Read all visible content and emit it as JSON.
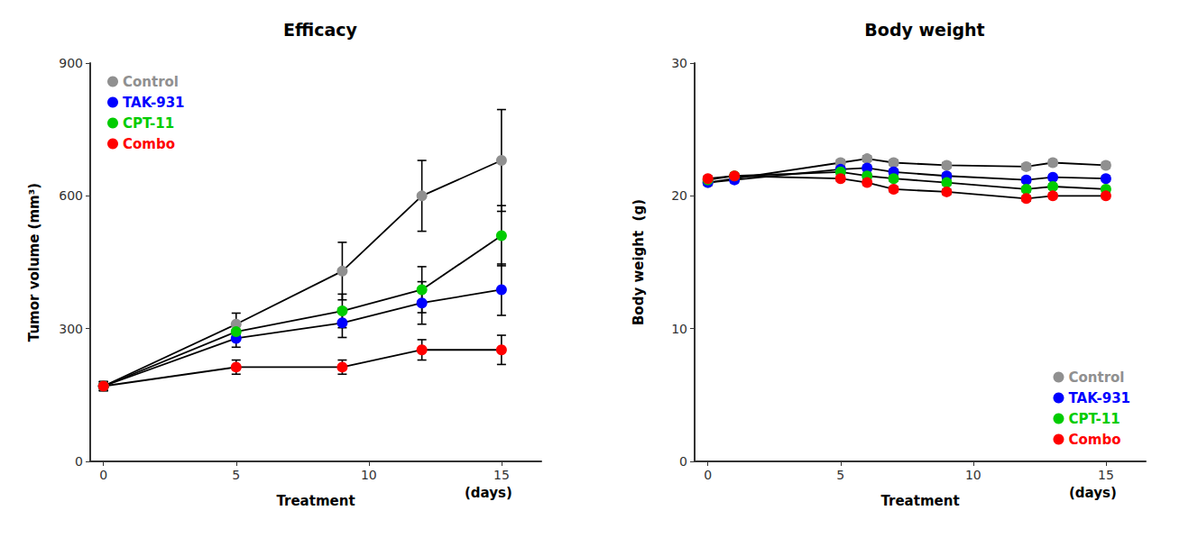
{
  "chart_data": [
    {
      "type": "line",
      "title": "Efficacy",
      "ylabel": "Tumor volume (mm³)",
      "xlabel": "Treatment",
      "annotations": [
        "(days)"
      ],
      "xlim": [
        -0.5,
        16.5
      ],
      "xticks": [
        0,
        5,
        10,
        15
      ],
      "ylim": [
        0,
        900
      ],
      "yticks": [
        0,
        300,
        600,
        900
      ],
      "grid": false,
      "legend": "upper left",
      "series": [
        {
          "name": "Control",
          "color": "#909090",
          "x": [
            0,
            5,
            9,
            12,
            15
          ],
          "values": [
            170,
            310,
            430,
            600,
            680
          ],
          "yerr": [
            10,
            25,
            65,
            80,
            115
          ]
        },
        {
          "name": "TAK-931",
          "color": "#0000FF",
          "x": [
            0,
            5,
            9,
            12,
            15
          ],
          "values": [
            170,
            278,
            313,
            358,
            388
          ],
          "yerr": [
            10,
            20,
            33,
            48,
            58
          ]
        },
        {
          "name": "CPT-11",
          "color": "#00CC00",
          "x": [
            0,
            5,
            9,
            12,
            15
          ],
          "values": [
            170,
            293,
            340,
            388,
            510
          ],
          "yerr": [
            10,
            18,
            38,
            52,
            68
          ]
        },
        {
          "name": "Combo",
          "color": "#FF0000",
          "x": [
            0,
            5,
            9,
            12,
            15
          ],
          "values": [
            170,
            213,
            213,
            252,
            252
          ],
          "yerr": [
            10,
            16,
            16,
            23,
            33
          ]
        }
      ]
    },
    {
      "type": "line",
      "title": "Body weight",
      "ylabel": "Body weight  (g)",
      "xlabel": "Treatment",
      "annotations": [
        "(days)"
      ],
      "xlim": [
        -0.5,
        16.5
      ],
      "xticks": [
        0,
        5,
        10,
        15
      ],
      "ylim": [
        0,
        30
      ],
      "yticks": [
        0,
        10,
        20,
        30
      ],
      "grid": false,
      "legend": "lower right",
      "series": [
        {
          "name": "Control",
          "color": "#909090",
          "x": [
            0,
            1,
            5,
            6,
            7,
            9,
            12,
            13,
            15
          ],
          "values": [
            21.0,
            21.3,
            22.5,
            22.8,
            22.5,
            22.3,
            22.2,
            22.5,
            22.3
          ],
          "yerr": [
            0.2,
            0.2,
            0.2,
            0.2,
            0.2,
            0.2,
            0.2,
            0.2,
            0.2
          ]
        },
        {
          "name": "TAK-931",
          "color": "#0000FF",
          "x": [
            0,
            1,
            5,
            6,
            7,
            9,
            12,
            13,
            15
          ],
          "values": [
            21.0,
            21.2,
            22.0,
            22.1,
            21.8,
            21.5,
            21.2,
            21.4,
            21.3
          ],
          "yerr": [
            0.2,
            0.2,
            0.2,
            0.2,
            0.2,
            0.2,
            0.2,
            0.2,
            0.2
          ]
        },
        {
          "name": "CPT-11",
          "color": "#00CC00",
          "x": [
            0,
            1,
            5,
            6,
            7,
            9,
            12,
            13,
            15
          ],
          "values": [
            21.2,
            21.5,
            21.8,
            21.5,
            21.3,
            21.0,
            20.5,
            20.7,
            20.5
          ],
          "yerr": [
            0.2,
            0.2,
            0.2,
            0.2,
            0.2,
            0.2,
            0.2,
            0.2,
            0.2
          ]
        },
        {
          "name": "Combo",
          "color": "#FF0000",
          "x": [
            0,
            1,
            5,
            6,
            7,
            9,
            12,
            13,
            15
          ],
          "values": [
            21.3,
            21.5,
            21.3,
            21.0,
            20.5,
            20.3,
            19.8,
            20.0,
            20.0
          ],
          "yerr": [
            0.2,
            0.2,
            0.2,
            0.2,
            0.2,
            0.2,
            0.2,
            0.2,
            0.2
          ]
        }
      ]
    }
  ]
}
